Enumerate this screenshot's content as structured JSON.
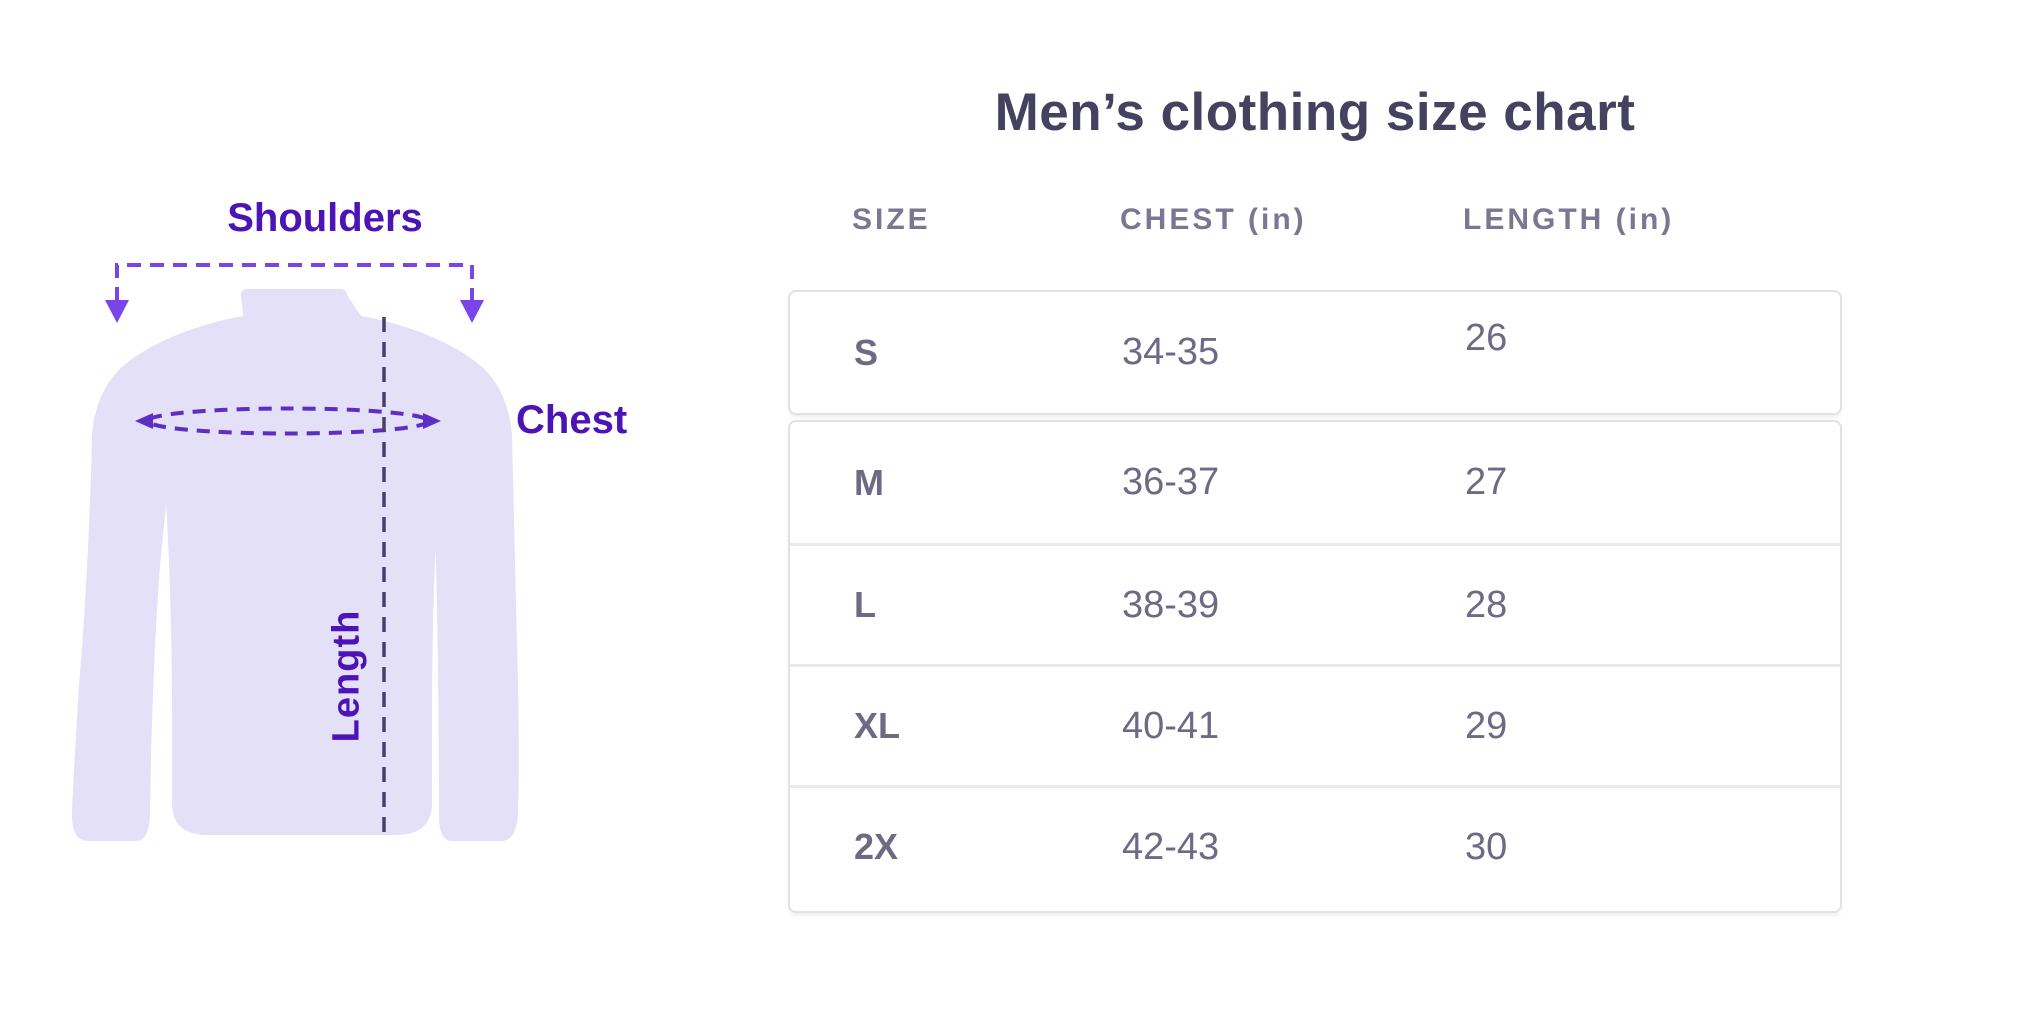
{
  "title": "Men’s clothing size chart",
  "diagram": {
    "shoulders_label": "Shoulders",
    "chest_label": "Chest",
    "length_label": "Length",
    "colors": {
      "shirt": "#E3E0F8",
      "label": "#4C13B6",
      "bracket": "#7A45E8",
      "ellipse": "#5C2EC4",
      "centerline": "#4A3D6E"
    }
  },
  "table": {
    "columns": [
      "SIZE",
      "CHEST (in)",
      "LENGTH (in)"
    ],
    "rows": [
      {
        "size": "S",
        "chest": "34-35",
        "length": "26"
      },
      {
        "size": "M",
        "chest": "36-37",
        "length": "27"
      },
      {
        "size": "L",
        "chest": "38-39",
        "length": "28"
      },
      {
        "size": "XL",
        "chest": "40-41",
        "length": "29"
      },
      {
        "size": "2X",
        "chest": "42-43",
        "length": "30"
      }
    ]
  },
  "chart_data": {
    "type": "table",
    "title": "Men’s clothing size chart",
    "columns": [
      "SIZE",
      "CHEST (in)",
      "LENGTH (in)"
    ],
    "rows": [
      [
        "S",
        "34-35",
        "26"
      ],
      [
        "M",
        "36-37",
        "27"
      ],
      [
        "L",
        "38-39",
        "28"
      ],
      [
        "XL",
        "40-41",
        "29"
      ],
      [
        "2X",
        "42-43",
        "30"
      ]
    ]
  }
}
